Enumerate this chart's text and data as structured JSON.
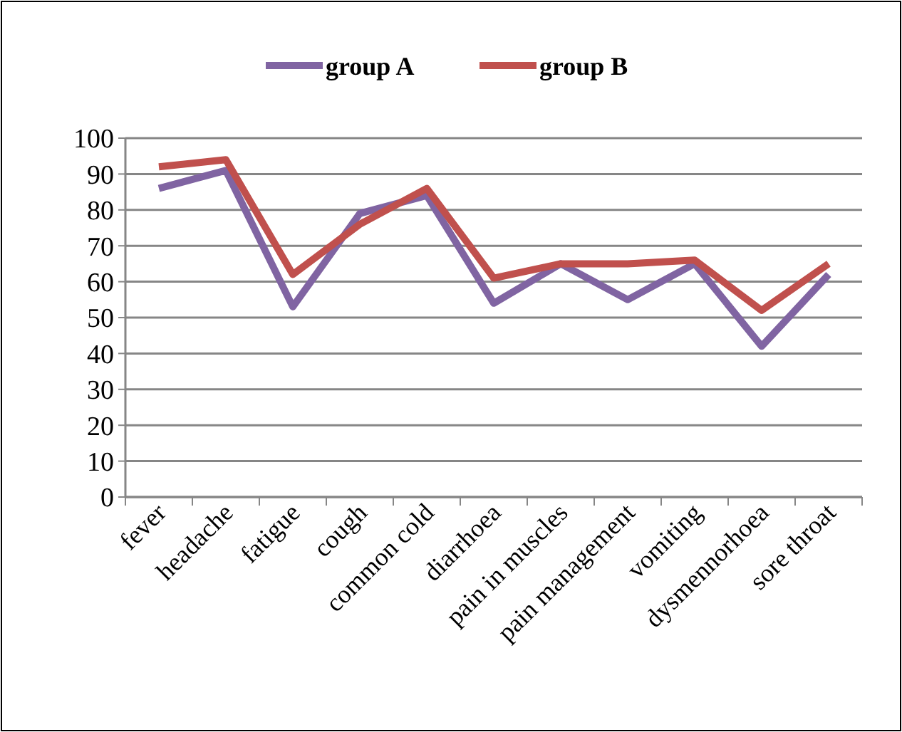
{
  "chart_data": {
    "type": "line",
    "categories": [
      "fever",
      "headache",
      "fatigue",
      "cough",
      "common cold",
      "diarrhoea",
      "pain in muscles",
      "pain management",
      "vomiting",
      "dysmennorhoea",
      "sore throat"
    ],
    "series": [
      {
        "name": "group A",
        "color": "#8064a2",
        "values": [
          86,
          91,
          53,
          79,
          84,
          54,
          65,
          55,
          65,
          42,
          62
        ]
      },
      {
        "name": "group B",
        "color": "#c0504d",
        "values": [
          92,
          94,
          62,
          76,
          86,
          61,
          65,
          65,
          66,
          52,
          65
        ]
      }
    ],
    "ylim": [
      0,
      100
    ],
    "yticks": [
      0,
      10,
      20,
      30,
      40,
      50,
      60,
      70,
      80,
      90,
      100
    ],
    "grid": "y",
    "legend": "top",
    "marker": "none",
    "line_style": "solid"
  }
}
